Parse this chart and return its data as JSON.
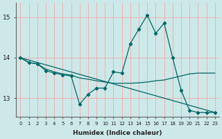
{
  "xlabel": "Humidex (Indice chaleur)",
  "background_color": "#cde8e8",
  "grid_color": "#ff9999",
  "line_color": "#006666",
  "xlim": [
    -0.5,
    23.5
  ],
  "ylim": [
    12.55,
    15.35
  ],
  "yticks": [
    13,
    14,
    15
  ],
  "xticks": [
    0,
    1,
    2,
    3,
    4,
    5,
    6,
    7,
    8,
    9,
    10,
    11,
    12,
    13,
    14,
    15,
    16,
    17,
    18,
    19,
    20,
    21,
    22,
    23
  ],
  "line1_x": [
    0,
    1,
    2,
    3,
    4,
    5,
    6,
    7,
    8,
    9,
    10,
    11,
    12,
    13,
    14,
    15,
    16,
    17,
    18,
    19,
    20,
    21,
    22,
    23
  ],
  "line1_y": [
    14.0,
    13.88,
    13.85,
    13.72,
    13.65,
    13.6,
    13.57,
    13.5,
    13.47,
    13.43,
    13.4,
    13.37,
    13.37,
    13.37,
    13.38,
    13.4,
    13.43,
    13.45,
    13.5,
    13.55,
    13.6,
    13.62,
    13.62,
    13.62
  ],
  "line2_x": [
    0,
    1,
    2,
    3,
    4,
    5,
    6,
    7,
    8,
    9,
    10,
    11,
    12,
    13,
    14,
    15,
    16,
    17,
    18,
    19,
    20,
    21,
    22,
    23
  ],
  "line2_y": [
    14.0,
    13.88,
    13.85,
    13.68,
    13.62,
    13.58,
    13.55,
    12.85,
    13.1,
    13.25,
    13.25,
    13.65,
    13.62,
    14.35,
    14.7,
    15.05,
    14.6,
    14.85,
    14.0,
    13.2,
    12.7,
    12.65,
    12.65,
    12.65
  ],
  "line3_x": [
    0,
    23
  ],
  "line3_y": [
    14.0,
    12.65
  ]
}
